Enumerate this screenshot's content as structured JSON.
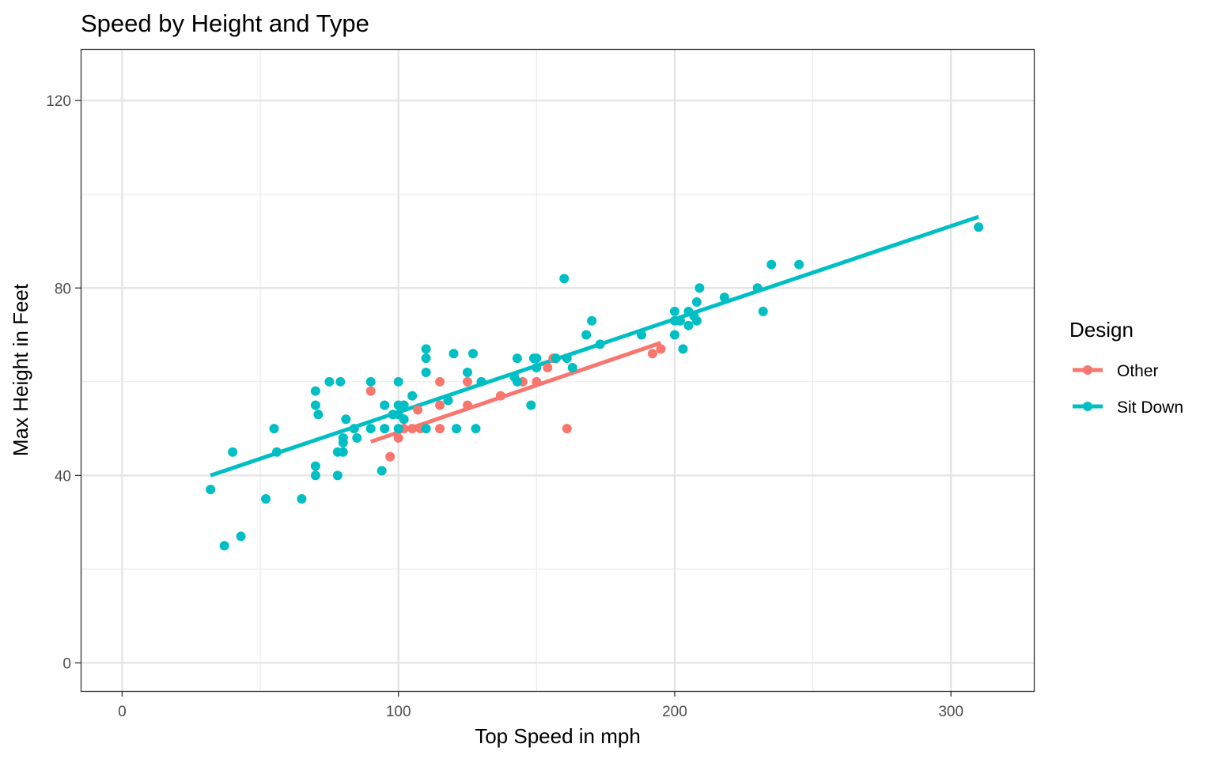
{
  "chart_data": {
    "type": "scatter",
    "title": "Speed by Height and Type",
    "xlabel": "Top Speed in mph",
    "ylabel": "Max Height in Feet",
    "xlim": [
      -15,
      330
    ],
    "ylim": [
      -6,
      131
    ],
    "x_ticks": [
      0,
      100,
      200,
      300
    ],
    "y_ticks": [
      0,
      40,
      80,
      120
    ],
    "x_tick_labels": [
      "0",
      "100",
      "200",
      "300"
    ],
    "y_tick_labels": [
      "0",
      "40",
      "80",
      "120"
    ],
    "grid": true,
    "legend": {
      "title": "Design",
      "position": "right",
      "entries": [
        "Other",
        "Sit Down"
      ]
    },
    "series": [
      {
        "name": "Other",
        "color": "#F8766D",
        "points": [
          [
            90,
            58
          ],
          [
            97,
            44
          ],
          [
            100,
            48
          ],
          [
            102,
            50
          ],
          [
            105,
            50
          ],
          [
            107,
            54
          ],
          [
            108,
            50
          ],
          [
            115,
            60
          ],
          [
            115,
            55
          ],
          [
            115,
            50
          ],
          [
            125,
            60
          ],
          [
            125,
            55
          ],
          [
            137,
            57
          ],
          [
            145,
            60
          ],
          [
            150,
            60
          ],
          [
            154,
            63
          ],
          [
            156,
            65
          ],
          [
            161,
            50
          ],
          [
            192,
            66
          ],
          [
            195,
            67
          ]
        ],
        "fit": [
          [
            90,
            47.2
          ],
          [
            195,
            68.3
          ]
        ]
      },
      {
        "name": "Sit Down",
        "color": "#00BFC4",
        "points": [
          [
            32,
            37
          ],
          [
            37,
            25
          ],
          [
            40,
            45
          ],
          [
            43,
            27
          ],
          [
            52,
            35
          ],
          [
            55,
            50
          ],
          [
            56,
            45
          ],
          [
            65,
            35
          ],
          [
            70,
            58
          ],
          [
            70,
            55
          ],
          [
            70,
            42
          ],
          [
            70,
            40
          ],
          [
            71,
            53
          ],
          [
            75,
            60
          ],
          [
            78,
            45
          ],
          [
            78,
            40
          ],
          [
            79,
            60
          ],
          [
            80,
            48
          ],
          [
            80,
            47
          ],
          [
            80,
            45
          ],
          [
            81,
            52
          ],
          [
            84,
            50
          ],
          [
            85,
            48
          ],
          [
            90,
            60
          ],
          [
            90,
            50
          ],
          [
            94,
            41
          ],
          [
            95,
            55
          ],
          [
            95,
            50
          ],
          [
            98,
            53
          ],
          [
            100,
            60
          ],
          [
            100,
            55
          ],
          [
            100,
            53
          ],
          [
            100,
            50
          ],
          [
            102,
            55
          ],
          [
            102,
            52
          ],
          [
            105,
            57
          ],
          [
            110,
            67
          ],
          [
            110,
            65
          ],
          [
            110,
            62
          ],
          [
            110,
            50
          ],
          [
            118,
            56
          ],
          [
            120,
            66
          ],
          [
            121,
            50
          ],
          [
            125,
            62
          ],
          [
            127,
            66
          ],
          [
            128,
            50
          ],
          [
            130,
            60
          ],
          [
            142,
            61
          ],
          [
            143,
            65
          ],
          [
            143,
            60
          ],
          [
            148,
            55
          ],
          [
            149,
            65
          ],
          [
            150,
            65
          ],
          [
            150,
            63
          ],
          [
            157,
            65
          ],
          [
            160,
            82
          ],
          [
            161,
            65
          ],
          [
            163,
            63
          ],
          [
            168,
            70
          ],
          [
            170,
            73
          ],
          [
            173,
            68
          ],
          [
            188,
            70
          ],
          [
            200,
            75
          ],
          [
            200,
            73
          ],
          [
            200,
            70
          ],
          [
            202,
            73
          ],
          [
            203,
            67
          ],
          [
            205,
            75
          ],
          [
            205,
            72
          ],
          [
            207,
            74
          ],
          [
            208,
            77
          ],
          [
            208,
            73
          ],
          [
            209,
            80
          ],
          [
            218,
            78
          ],
          [
            230,
            80
          ],
          [
            232,
            75
          ],
          [
            235,
            85
          ],
          [
            245,
            85
          ],
          [
            310,
            93
          ]
        ],
        "fit": [
          [
            32,
            40
          ],
          [
            310,
            95.2
          ]
        ]
      }
    ]
  }
}
